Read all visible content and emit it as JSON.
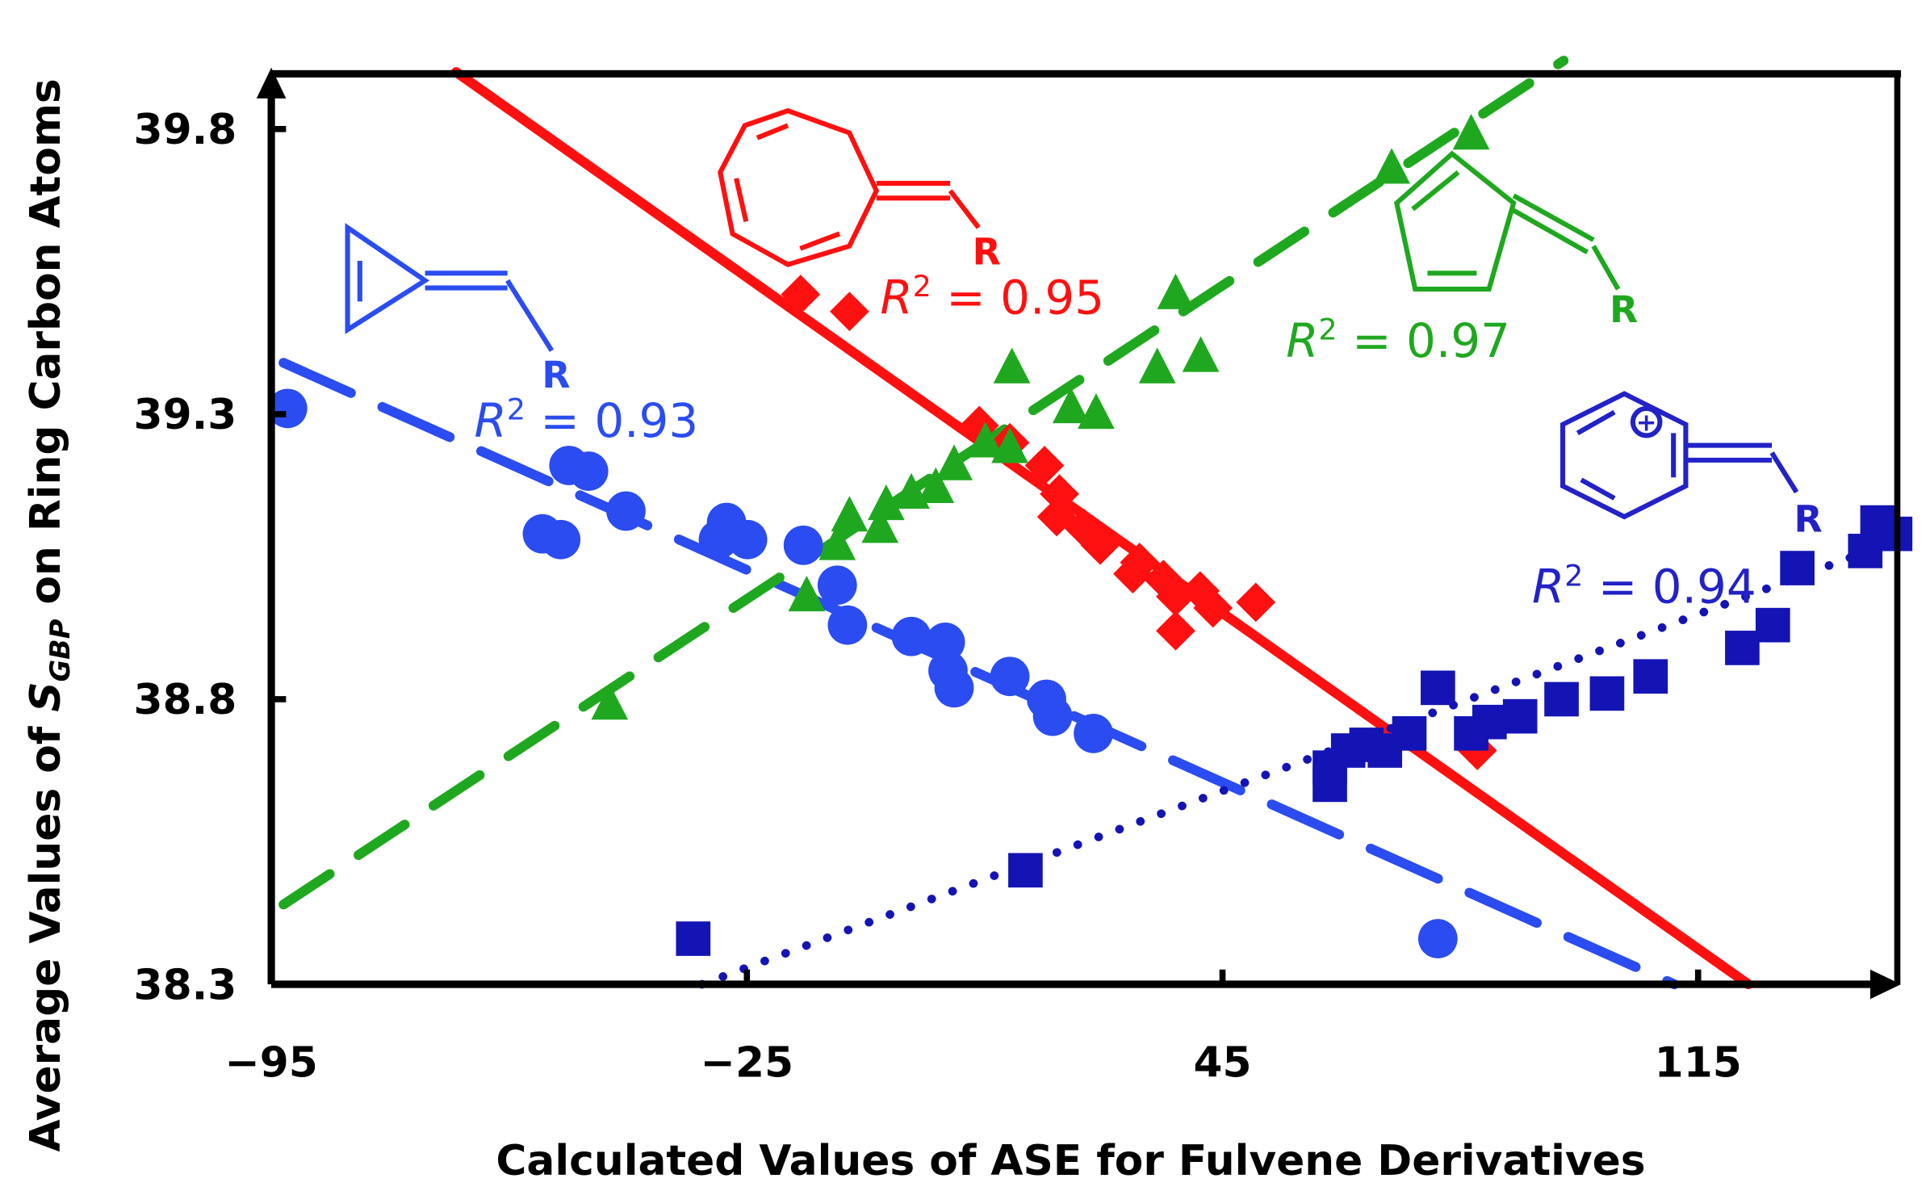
{
  "chart_data": {
    "type": "scatter",
    "xlabel": "Calculated Values of ASE for Fulvene Derivatives",
    "ylabel": {
      "prefix": "Average Values of ",
      "symbol": "S",
      "subscript": "GBP",
      "suffix": " on Ring Carbon Atoms"
    },
    "xlim": [
      -95,
      142
    ],
    "ylim": [
      38.3,
      39.9
    ],
    "xticks": [
      "-95",
      "-25",
      "45",
      "115"
    ],
    "yticks": [
      "38.3",
      "38.8",
      "39.3",
      "39.8"
    ],
    "xtick_values": [
      -95,
      -25,
      45,
      115
    ],
    "ytick_values": [
      38.3,
      38.8,
      39.3,
      39.8
    ],
    "grid": false,
    "series": [
      {
        "marker": "circle",
        "color": "#2a4cf0",
        "line_style": "long-dash",
        "r2_label": "R",
        "r2_sup": "2",
        "r2_value": " = 0.93",
        "ring_label": "R",
        "fit": [
          [
            -93.2,
            39.39
          ],
          [
            111.5,
            38.3
          ]
        ],
        "points": [
          [
            -92.6,
            39.31
          ],
          [
            -55.1,
            39.09
          ],
          [
            -52.4,
            39.08
          ],
          [
            -51.2,
            39.21
          ],
          [
            -48.3,
            39.2
          ],
          [
            -42.8,
            39.13
          ],
          [
            -28,
            39.11
          ],
          [
            -24.9,
            39.08
          ],
          [
            -29.2,
            39.08
          ],
          [
            -16.7,
            39.07
          ],
          [
            -11.7,
            39.0
          ],
          [
            -10.2,
            38.93
          ],
          [
            -0.8,
            38.91
          ],
          [
            4.2,
            38.9
          ],
          [
            4.6,
            38.85
          ],
          [
            5.5,
            38.82
          ],
          [
            13.7,
            38.84
          ],
          [
            19.1,
            38.8
          ],
          [
            20,
            38.77
          ],
          [
            26,
            38.74
          ],
          [
            76.7,
            38.38
          ]
        ]
      },
      {
        "marker": "diamond",
        "color": "#ff1010",
        "line_style": "solid",
        "r2_label": "R",
        "r2_sup": "2",
        "r2_value": " = 0.95",
        "ring_label": "R",
        "fit": [
          [
            -67.8,
            39.9
          ],
          [
            122.4,
            38.3
          ]
        ],
        "points": [
          [
            -17.1,
            39.51
          ],
          [
            -9.9,
            39.48
          ],
          [
            9.2,
            39.28
          ],
          [
            13.7,
            39.25
          ],
          [
            18.8,
            39.21
          ],
          [
            21,
            39.16
          ],
          [
            20.6,
            39.12
          ],
          [
            24.6,
            39.1
          ],
          [
            27,
            39.07
          ],
          [
            32.8,
            39.04
          ],
          [
            31.8,
            39.02
          ],
          [
            36.3,
            39.01
          ],
          [
            38.1,
            38.98
          ],
          [
            41.7,
            38.99
          ],
          [
            43.6,
            38.96
          ],
          [
            38.1,
            38.92
          ],
          [
            49.9,
            38.97
          ],
          [
            82.5,
            38.71
          ]
        ]
      },
      {
        "marker": "triangle",
        "color": "#1fa81f",
        "line_style": "dash",
        "r2_label": "R",
        "r2_sup": "2",
        "r2_value": " = 0.97",
        "ring_label": "R",
        "fit": [
          [
            -93.2,
            38.44
          ],
          [
            95.2,
            39.92
          ]
        ],
        "points": [
          [
            -45.2,
            38.79
          ],
          [
            -16.2,
            38.98
          ],
          [
            -11.7,
            39.07
          ],
          [
            -9.9,
            39.12
          ],
          [
            -5.4,
            39.1
          ],
          [
            -4.5,
            39.14
          ],
          [
            -0.8,
            39.16
          ],
          [
            2.8,
            39.17
          ],
          [
            5.5,
            39.21
          ],
          [
            10.1,
            39.25
          ],
          [
            13.7,
            39.24
          ],
          [
            14,
            39.38
          ],
          [
            22.7,
            39.31
          ],
          [
            26.4,
            39.3
          ],
          [
            35.4,
            39.38
          ],
          [
            38.1,
            39.51
          ],
          [
            41.8,
            39.4
          ],
          [
            69.9,
            39.73
          ],
          [
            81.6,
            39.79
          ]
        ]
      },
      {
        "marker": "square",
        "color": "#1414b4",
        "line_style": "dotted",
        "r2_label": "R",
        "r2_sup": "2",
        "r2_value": " = 0.94",
        "ring_label": "R",
        "fit": [
          [
            -31.6,
            38.3
          ],
          [
            142.3,
            39.07
          ]
        ],
        "points": [
          [
            -32.9,
            38.38
          ],
          [
            16,
            38.5
          ],
          [
            60.8,
            38.65
          ],
          [
            60.8,
            38.68
          ],
          [
            63.5,
            38.71
          ],
          [
            66.2,
            38.72
          ],
          [
            68.9,
            38.71
          ],
          [
            72.5,
            38.74
          ],
          [
            76.7,
            38.82
          ],
          [
            81.6,
            38.74
          ],
          [
            84.3,
            38.76
          ],
          [
            88.8,
            38.77
          ],
          [
            94.9,
            38.8
          ],
          [
            101.6,
            38.81
          ],
          [
            108,
            38.84
          ],
          [
            121.5,
            38.89
          ],
          [
            126,
            38.93
          ],
          [
            129.6,
            39.03
          ],
          [
            139.6,
            39.06
          ],
          [
            141.4,
            39.11
          ],
          [
            144,
            39.09
          ]
        ]
      }
    ],
    "structures": [
      "methylenecyclopropene",
      "methylenecycloheptatriene",
      "methylenecyclopentadiene",
      "methylenebenzenium (+)"
    ],
    "charge_symbol": "+"
  }
}
